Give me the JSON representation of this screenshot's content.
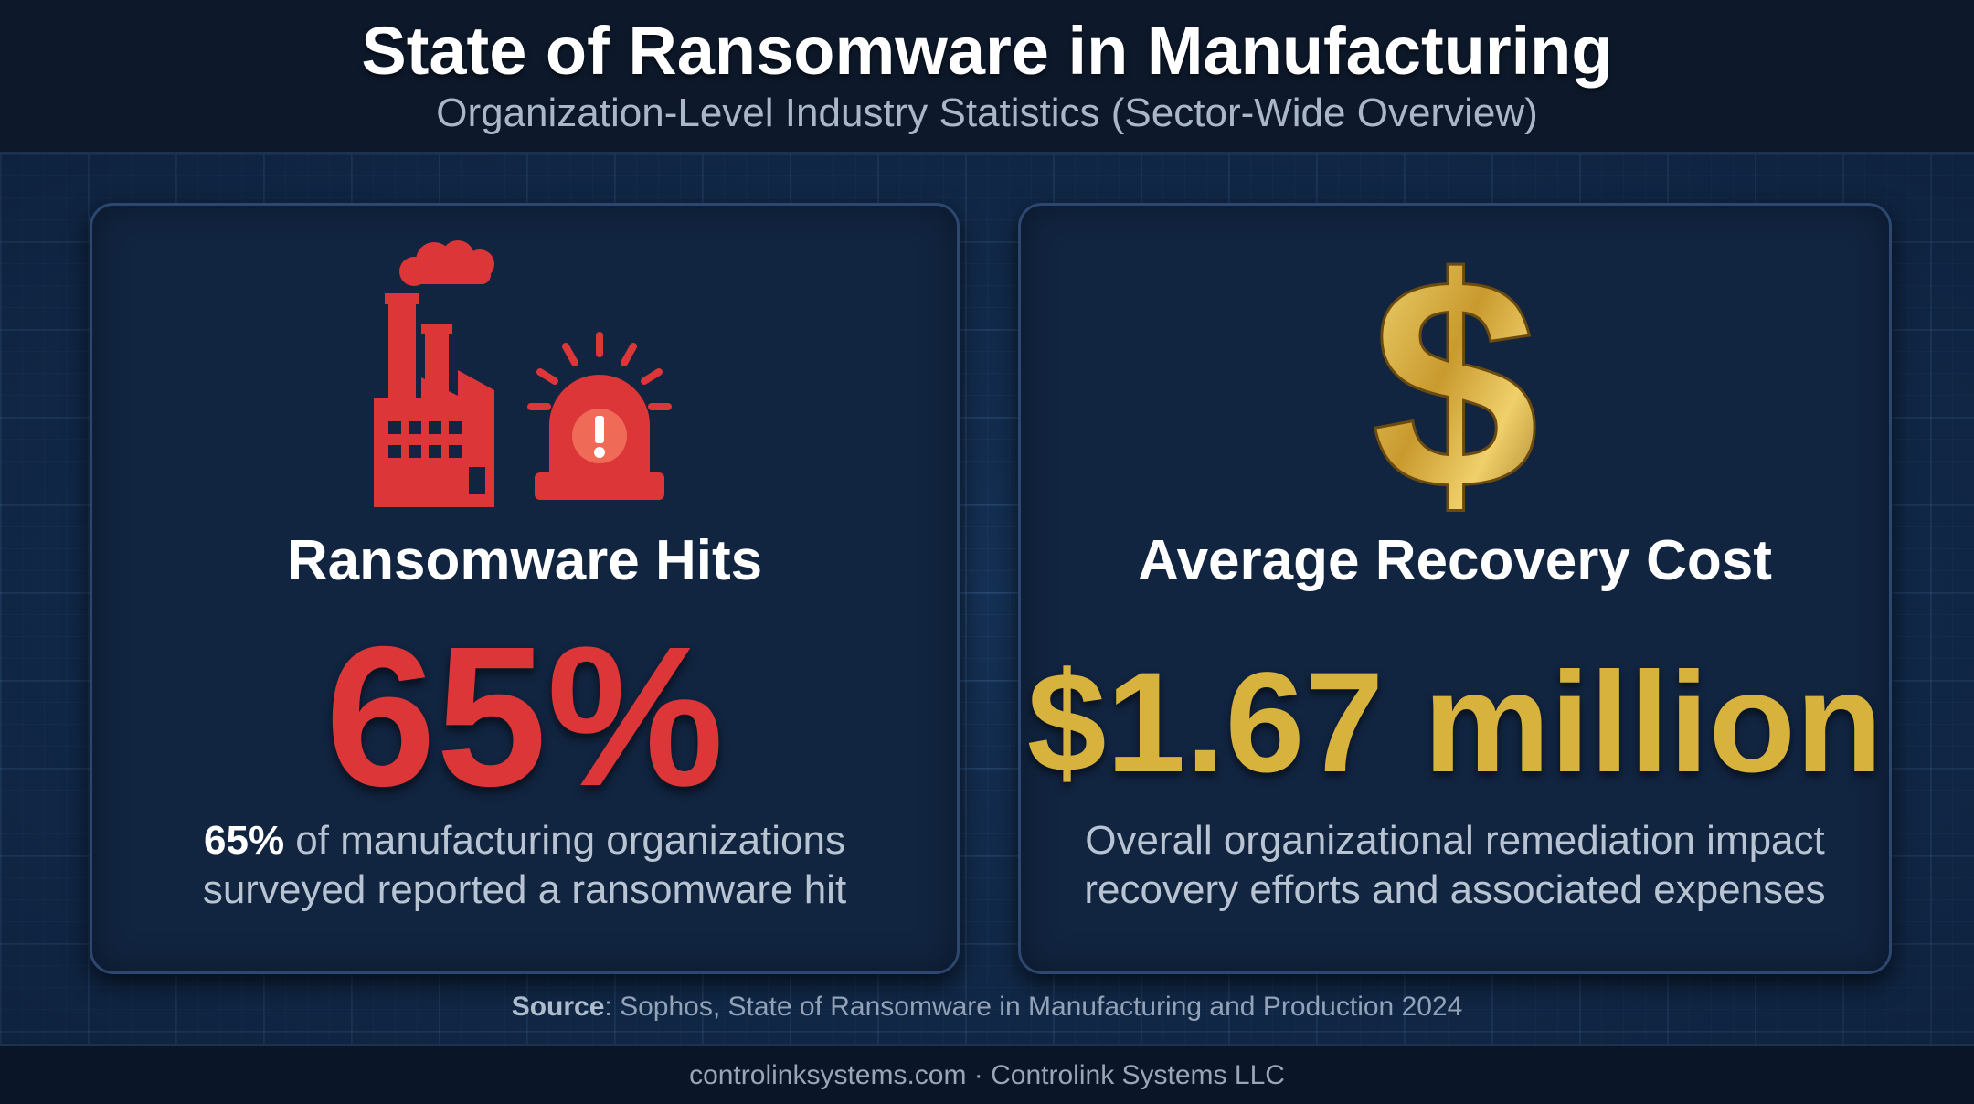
{
  "header": {
    "title": "State of Ransomware in Manufacturing",
    "subtitle": "Organization-Level Industry Statistics (Sector-Wide Overview)"
  },
  "cards": [
    {
      "icon": "factory-alarm-icon",
      "heading": "Ransomware Hits",
      "value": "65%",
      "desc_strong": "65%",
      "desc_line1_rest": " of manufacturing organizations",
      "desc_line2": "surveyed reported a ransomware hit",
      "accent": "#dc3638"
    },
    {
      "icon": "dollar-sign-icon",
      "heading": "Average Recovery Cost",
      "value": "$1.67 million",
      "desc_line1": "Overall organizational remediation impact",
      "desc_line2": "recovery efforts and associated expenses",
      "accent": "#d7b33e"
    }
  ],
  "source": {
    "label": "Source",
    "text": ": Sophos, State of Ransomware in Manufacturing and Production 2024"
  },
  "footer": {
    "text": "controlinksystems.com · Controlink Systems LLC"
  },
  "colors": {
    "background": "#0c1a2e",
    "card": "#112440",
    "red": "#dc3638",
    "gold": "#d7b33e"
  }
}
